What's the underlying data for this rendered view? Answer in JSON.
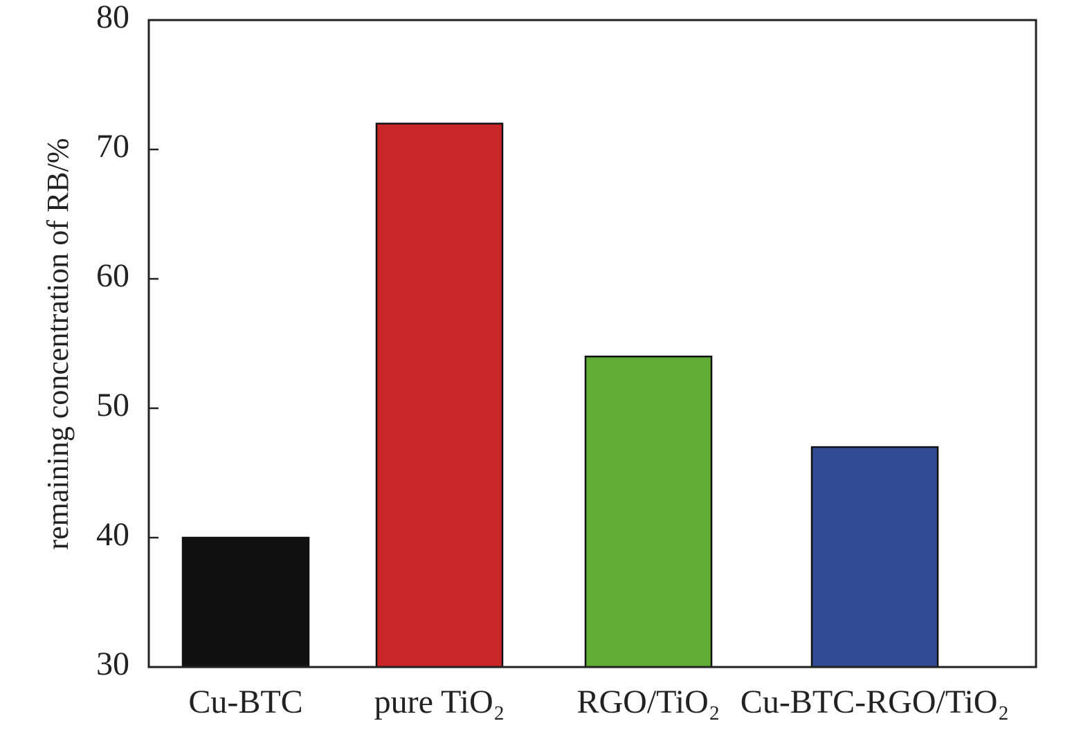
{
  "chart_data": {
    "type": "bar",
    "y_label": "remaining concentration of RB/%",
    "categories": [
      "Cu-BTC",
      "pure TiO₂",
      "RGO/TiO₂",
      "Cu-BTC-RGO/TiO₂"
    ],
    "values": [
      40,
      72,
      54,
      47
    ],
    "colors": [
      "#111111",
      "#c9262a",
      "#5fad35",
      "#314c94"
    ],
    "ylim": [
      30,
      80
    ],
    "yticks": [
      30,
      40,
      50,
      60,
      70,
      80
    ]
  }
}
